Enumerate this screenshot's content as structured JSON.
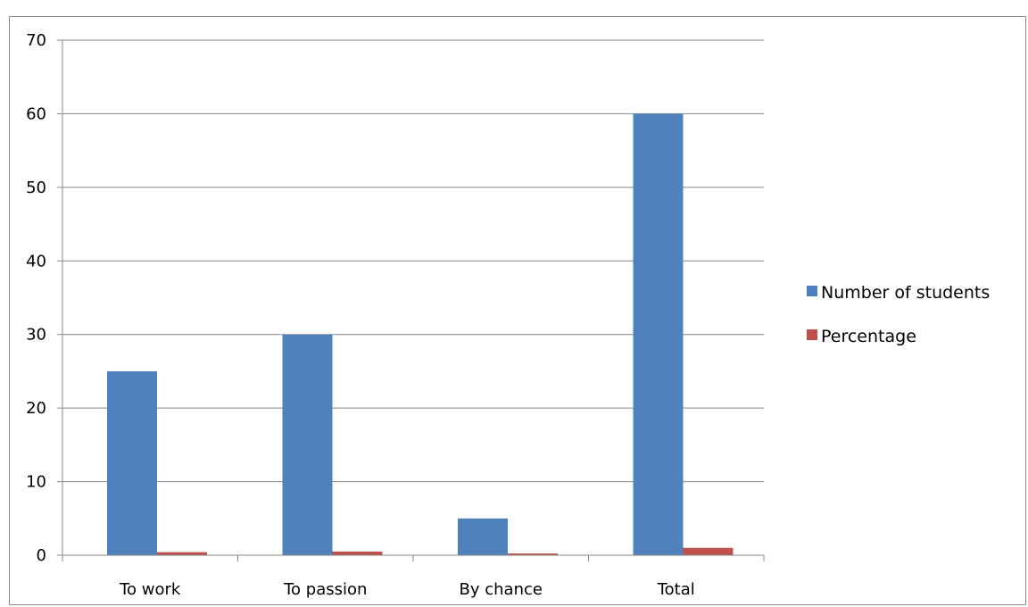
{
  "chart_data": {
    "type": "bar",
    "title": "",
    "xlabel": "",
    "ylabel": "",
    "categories": [
      "To work",
      "To passion",
      "By chance",
      "Total"
    ],
    "series": [
      {
        "name": "Number of students",
        "values": [
          25,
          30,
          5,
          60
        ],
        "color": "#4f81bd"
      },
      {
        "name": "Percentage",
        "values": [
          0.42,
          0.5,
          0.08,
          1
        ],
        "color": "#c0504d"
      }
    ],
    "ylim": [
      0,
      70
    ],
    "yticks": [
      0,
      10,
      20,
      30,
      40,
      50,
      60,
      70
    ],
    "grid": true,
    "legend": "right"
  }
}
